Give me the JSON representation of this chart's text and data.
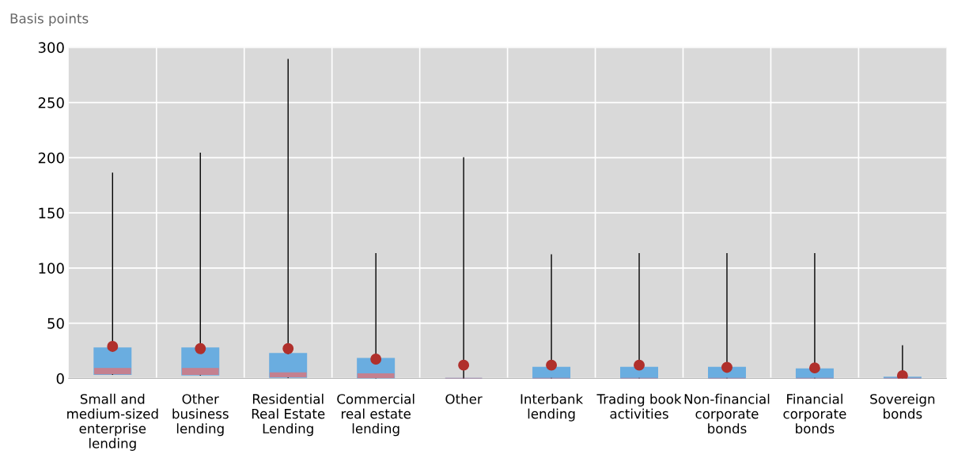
{
  "chart_data": {
    "type": "box",
    "ylabel": "Basis points",
    "categories": [
      "Small and\nmedium-sized\nenterprise\nlending",
      "Other\nbusiness\nlending",
      "Residential\nReal Estate\nLending",
      "Commercial\nreal estate\nlending",
      "Other",
      "Interbank\nlending",
      "Trading book\nactivities",
      "Non-financial\ncorporate\nbonds",
      "Financial\ncorporate\nbonds",
      "Sovereign\nbonds"
    ],
    "series": [
      {
        "color": "#6aade0",
        "boxes": [
          {
            "low": 3.7,
            "q1": 3.7,
            "median": 9,
            "q3": 27.5,
            "high": 186,
            "mean": 29
          },
          {
            "low": 3.1,
            "q1": 3.1,
            "median": 9,
            "q3": 27.5,
            "high": 204,
            "mean": 27
          },
          {
            "low": 1,
            "q1": 1,
            "median": 5,
            "q3": 22.5,
            "high": 289,
            "mean": 27
          },
          {
            "low": 0.3,
            "q1": 0.3,
            "median": 4,
            "q3": 18,
            "high": 113,
            "mean": 17.5
          },
          {
            "low": 0,
            "q1": 0,
            "median": 0,
            "q3": 0,
            "high": 200,
            "mean": 12
          },
          {
            "low": 0,
            "q1": 0,
            "median": 0,
            "q3": 10,
            "high": 112,
            "mean": 12
          },
          {
            "low": 0,
            "q1": 0,
            "median": 0,
            "q3": 10,
            "high": 113,
            "mean": 12
          },
          {
            "low": 0,
            "q1": 0,
            "median": 0,
            "q3": 10,
            "high": 113,
            "mean": 10
          },
          {
            "low": 0,
            "q1": 0,
            "median": 0,
            "q3": 8.5,
            "high": 113,
            "mean": 9.5
          },
          {
            "low": 0,
            "q1": 0,
            "median": 0,
            "q3": 1,
            "high": 29.5,
            "mean": 2.5
          }
        ]
      }
    ],
    "ylim": [
      0,
      300
    ],
    "yticks": [
      0,
      50,
      100,
      150,
      200,
      250,
      300
    ],
    "grid": true
  }
}
